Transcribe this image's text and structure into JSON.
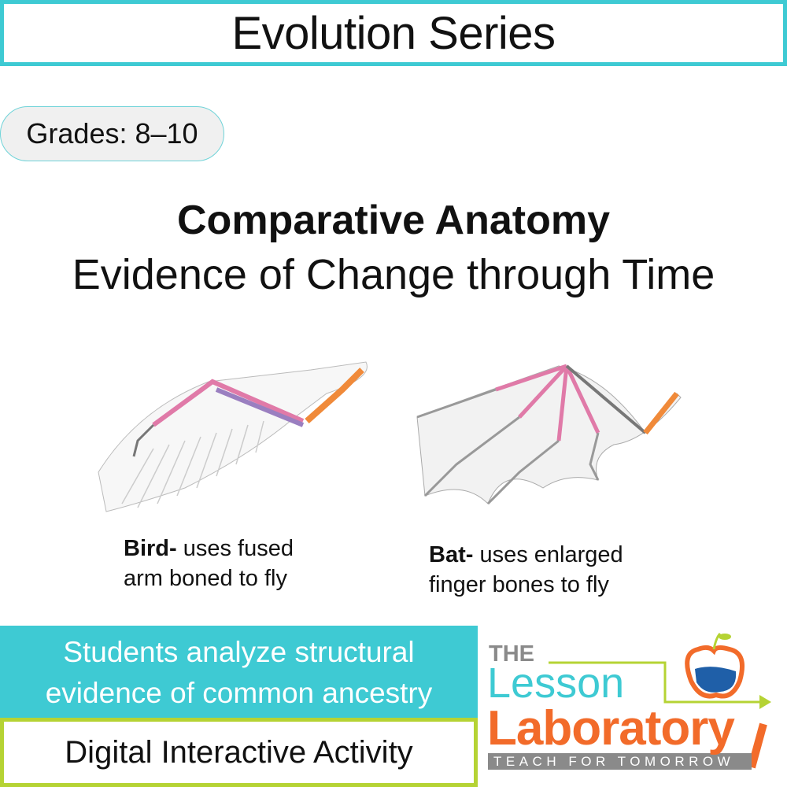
{
  "header": {
    "title": "Evolution Series"
  },
  "grades": {
    "label": "Grades: 8–10"
  },
  "title": {
    "main": "Comparative Anatomy",
    "subtitle": "Evidence of Change through Time"
  },
  "illustration": {
    "bird": {
      "name": "Bird-",
      "desc_line1": " uses fused",
      "desc_line2": "arm boned to fly"
    },
    "bat": {
      "name": "Bat-",
      "desc_line1": " uses enlarged",
      "desc_line2": "finger bones to fly"
    }
  },
  "banner": {
    "line1": "Students analyze structural",
    "line2": "evidence of common ancestry"
  },
  "activity": {
    "label": "Digital Interactive Activity"
  },
  "logo": {
    "the": "THE",
    "lesson": "Lesson",
    "laboratory": "Laboratory",
    "tagline": "TEACH FOR TOMORROW"
  },
  "colors": {
    "teal": "#3ecad3",
    "green": "#b5d334",
    "orange": "#f26b2a",
    "gray": "#8a8a8a",
    "bone_pink": "#e07aa8",
    "bone_purple": "#9a7fc0",
    "bone_orange": "#f08a3a"
  }
}
